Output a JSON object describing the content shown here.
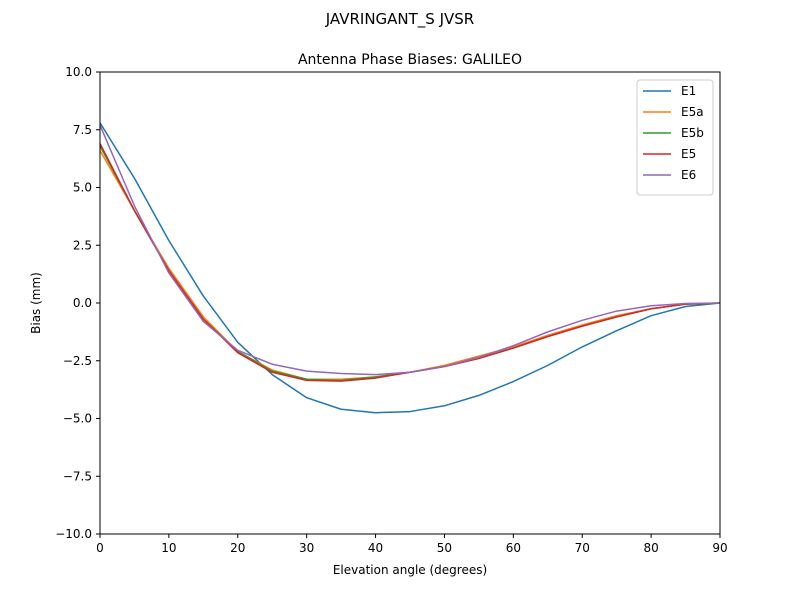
{
  "chart_data": {
    "type": "line",
    "suptitle": "JAVRINGANT_S    JVSR",
    "title": "Antenna Phase Biases: GALILEO",
    "xlabel": "Elevation angle (degrees)",
    "ylabel": "Bias (mm)",
    "xlim": [
      0,
      90
    ],
    "ylim": [
      -10,
      10
    ],
    "xticks": [
      0,
      10,
      20,
      30,
      40,
      50,
      60,
      70,
      80,
      90
    ],
    "xtick_labels": [
      "0",
      "10",
      "20",
      "30",
      "40",
      "50",
      "60",
      "70",
      "80",
      "90"
    ],
    "yticks": [
      10,
      7.5,
      5,
      2.5,
      0,
      -2.5,
      -5,
      -7.5,
      -10
    ],
    "ytick_labels": [
      "10.0",
      "7.5",
      "5.0",
      "2.5",
      "0.0",
      "−2.5",
      "−5.0",
      "−7.5",
      "−10.0"
    ],
    "grid": false,
    "legend_position": "top-right",
    "x": [
      0,
      5,
      10,
      15,
      20,
      25,
      30,
      35,
      40,
      45,
      50,
      55,
      60,
      65,
      70,
      75,
      80,
      85,
      90
    ],
    "series": [
      {
        "name": "E1",
        "color": "#1f77b4",
        "values": [
          7.8,
          5.4,
          2.7,
          0.3,
          -1.7,
          -3.1,
          -4.1,
          -4.6,
          -4.75,
          -4.7,
          -4.45,
          -4.0,
          -3.4,
          -2.7,
          -1.9,
          -1.2,
          -0.55,
          -0.15,
          0.0
        ]
      },
      {
        "name": "E5a",
        "color": "#ff7f0e",
        "values": [
          6.6,
          4.0,
          1.5,
          -0.6,
          -2.1,
          -2.9,
          -3.3,
          -3.3,
          -3.2,
          -3.0,
          -2.7,
          -2.3,
          -1.9,
          -1.4,
          -0.95,
          -0.55,
          -0.25,
          -0.05,
          0.0
        ]
      },
      {
        "name": "E5b",
        "color": "#2ca02c",
        "values": [
          6.8,
          4.0,
          1.4,
          -0.7,
          -2.1,
          -2.95,
          -3.3,
          -3.35,
          -3.2,
          -3.0,
          -2.75,
          -2.4,
          -1.95,
          -1.45,
          -1.0,
          -0.6,
          -0.25,
          -0.05,
          0.0
        ]
      },
      {
        "name": "E5",
        "color": "#d62728",
        "values": [
          6.9,
          4.0,
          1.4,
          -0.7,
          -2.15,
          -3.0,
          -3.35,
          -3.38,
          -3.25,
          -3.0,
          -2.75,
          -2.4,
          -1.95,
          -1.45,
          -1.0,
          -0.6,
          -0.25,
          -0.05,
          0.0
        ]
      },
      {
        "name": "E6",
        "color": "#9467bd",
        "values": [
          7.7,
          4.2,
          1.3,
          -0.8,
          -2.05,
          -2.65,
          -2.95,
          -3.05,
          -3.1,
          -3.0,
          -2.75,
          -2.35,
          -1.85,
          -1.25,
          -0.75,
          -0.35,
          -0.12,
          -0.02,
          0.0
        ]
      }
    ]
  }
}
